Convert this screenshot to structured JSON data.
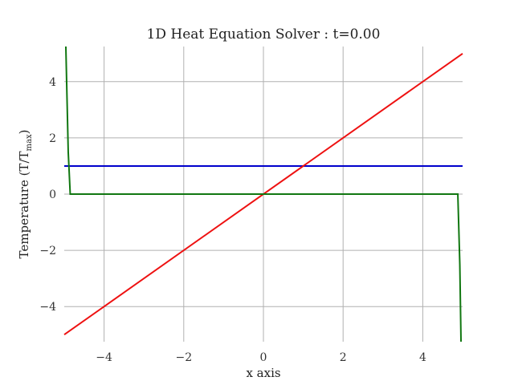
{
  "chart_data": {
    "type": "line",
    "title": "1D Heat Equation Solver : t=0.00",
    "xlabel": "x axis",
    "ylabel_main": "Temperature (T/T",
    "ylabel_sub": "max",
    "ylabel_end": ")",
    "xlim": [
      -5,
      5
    ],
    "ylim": [
      -5.25,
      5.25
    ],
    "xticks": [
      -4,
      -2,
      0,
      2,
      4
    ],
    "yticks": [
      -4,
      -2,
      0,
      2,
      4
    ],
    "xtick_labels": [
      "−4",
      "−2",
      "0",
      "2",
      "4"
    ],
    "ytick_labels": [
      "−4",
      "−2",
      "0",
      "2",
      "4"
    ],
    "grid": true,
    "series": [
      {
        "color": "#0000cc",
        "x": [
          -5,
          5
        ],
        "y": [
          1,
          1
        ]
      },
      {
        "color": "#ee1111",
        "x": [
          -5,
          5
        ],
        "y": [
          -5,
          5
        ]
      },
      {
        "color": "#117711",
        "x": [
          -4.96,
          -4.9,
          -4.85,
          4.88,
          4.93,
          4.96
        ],
        "y": [
          5.25,
          1.5,
          0,
          0,
          -2.5,
          -5.25
        ]
      }
    ]
  }
}
